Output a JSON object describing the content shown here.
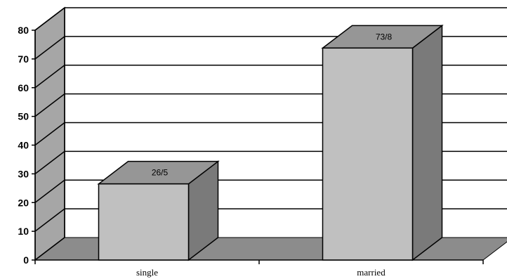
{
  "chart_data": {
    "type": "bar",
    "style": "3d",
    "categories": [
      "single",
      "married"
    ],
    "values": [
      26.5,
      73.8
    ],
    "data_labels": [
      "26/5",
      "73/8"
    ],
    "ylim": [
      0,
      80
    ],
    "yticks": [
      "0",
      "10",
      "20",
      "30",
      "40",
      "50",
      "60",
      "70",
      "80"
    ],
    "grid": true,
    "title": "",
    "xlabel": "",
    "ylabel": "",
    "colors": {
      "bar_front": "#c0c0c0",
      "bar_top": "#969696",
      "bar_side": "#7a7a7a",
      "wall": "#a6a6a6",
      "floor": "#8c8c8c",
      "gridline": "#000000"
    }
  }
}
